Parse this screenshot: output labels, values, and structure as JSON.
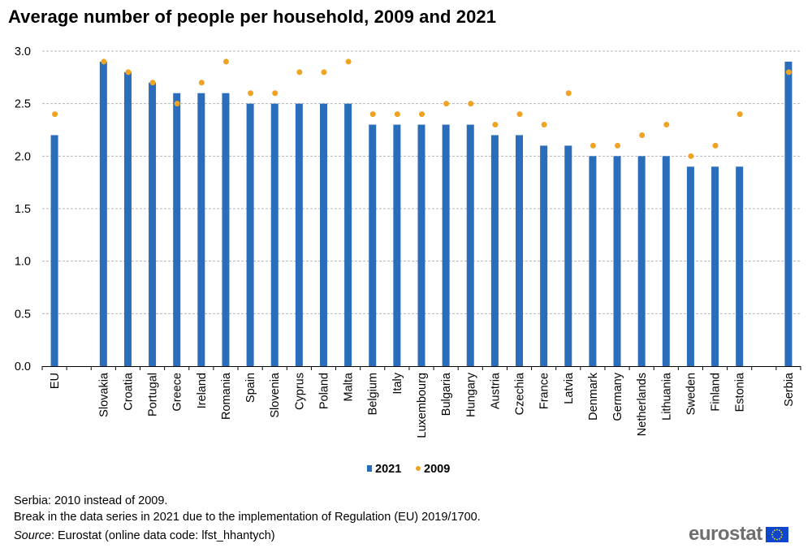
{
  "title": "Average number of people per household, 2009 and 2021",
  "notes": [
    "Serbia: 2010 instead of 2009.",
    "Break in the data series in 2021 due to the implementation of Regulation (EU) 2019/1700."
  ],
  "source": {
    "label": "Source",
    "text": ": Eurostat (online data code: lfst_hhantych)"
  },
  "logo": {
    "text": "eurostat"
  },
  "colors": {
    "bar": "#2a6ebb",
    "dot": "#f0a323",
    "grid": "#b4b4b4",
    "axis": "#000000",
    "flag": "#0e47cb",
    "star": "#ffe600"
  },
  "chart_data": {
    "type": "bar",
    "categories": [
      "EU",
      "",
      "Slovakia",
      "Croatia",
      "Portugal",
      "Greece",
      "Ireland",
      "Romania",
      "Spain",
      "Slovenia",
      "Cyprus",
      "Poland",
      "Malta",
      "Belgium",
      "Italy",
      "Luxembourg",
      "Bulgaria",
      "Hungary",
      "Austria",
      "Czechia",
      "France",
      "Latvia",
      "Denmark",
      "Germany",
      "Netherlands",
      "Lithuania",
      "Sweden",
      "Finland",
      "Estonia",
      "",
      "Serbia"
    ],
    "series": [
      {
        "name": "2021",
        "kind": "bar",
        "values": [
          2.2,
          null,
          2.9,
          2.8,
          2.7,
          2.6,
          2.6,
          2.6,
          2.5,
          2.5,
          2.5,
          2.5,
          2.5,
          2.3,
          2.3,
          2.3,
          2.3,
          2.3,
          2.2,
          2.2,
          2.1,
          2.1,
          2.0,
          2.0,
          2.0,
          2.0,
          1.9,
          1.9,
          1.9,
          null,
          2.9
        ]
      },
      {
        "name": "2009",
        "kind": "dot",
        "values": [
          2.4,
          null,
          2.9,
          2.8,
          2.7,
          2.5,
          2.7,
          2.9,
          2.6,
          2.6,
          2.8,
          2.8,
          2.9,
          2.4,
          2.4,
          2.4,
          2.5,
          2.5,
          2.3,
          2.4,
          2.3,
          2.6,
          2.1,
          2.1,
          2.2,
          2.3,
          2.0,
          2.1,
          2.4,
          null,
          2.8
        ]
      }
    ],
    "ylim": [
      0,
      3
    ],
    "yticks": [
      "0.0",
      "0.5",
      "1.0",
      "1.5",
      "2.0",
      "2.5",
      "3.0"
    ],
    "grid": true,
    "legend_position": "bottom-center"
  }
}
